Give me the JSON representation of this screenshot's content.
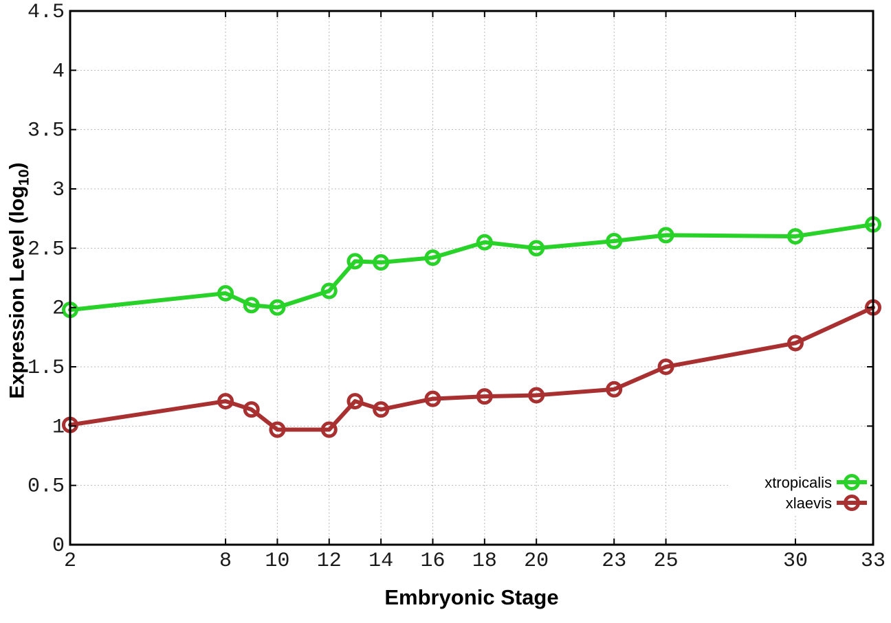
{
  "chart_data": {
    "type": "line",
    "title": "",
    "xlabel": "Embryonic Stage",
    "ylabel": "Expression Level (log10)",
    "ylabel_parts": {
      "prefix": "Expression Level (log",
      "sub": "10",
      "suffix": ")"
    },
    "xlim": [
      2,
      33
    ],
    "ylim": [
      0,
      4.5
    ],
    "xticks": [
      2,
      8,
      10,
      12,
      14,
      16,
      18,
      20,
      23,
      25,
      30,
      33
    ],
    "yticks": [
      0,
      0.5,
      1,
      1.5,
      2,
      2.5,
      3,
      3.5,
      4,
      4.5
    ],
    "ytick_labels": [
      "0",
      "0.5",
      "1",
      "1.5",
      "2",
      "2.5",
      "3",
      "3.5",
      "4",
      "4.5"
    ],
    "grid": true,
    "legend_position": "bottom-right",
    "categories": [
      2,
      8,
      9,
      10,
      12,
      13,
      14,
      16,
      18,
      20,
      23,
      25,
      30,
      33
    ],
    "series": [
      {
        "name": "xtropicalis",
        "color": "#28d228",
        "values": [
          1.98,
          2.12,
          2.02,
          2.0,
          2.14,
          2.39,
          2.38,
          2.42,
          2.55,
          2.5,
          2.56,
          2.61,
          2.6,
          2.7
        ]
      },
      {
        "name": "xlaevis",
        "color": "#a93030",
        "values": [
          1.01,
          1.21,
          1.14,
          0.97,
          0.97,
          1.21,
          1.14,
          1.23,
          1.25,
          1.26,
          1.31,
          1.5,
          1.7,
          2.0
        ]
      }
    ],
    "colors": {
      "grid": "#b8b8b8",
      "axis": "#000000",
      "background": "#ffffff"
    }
  }
}
